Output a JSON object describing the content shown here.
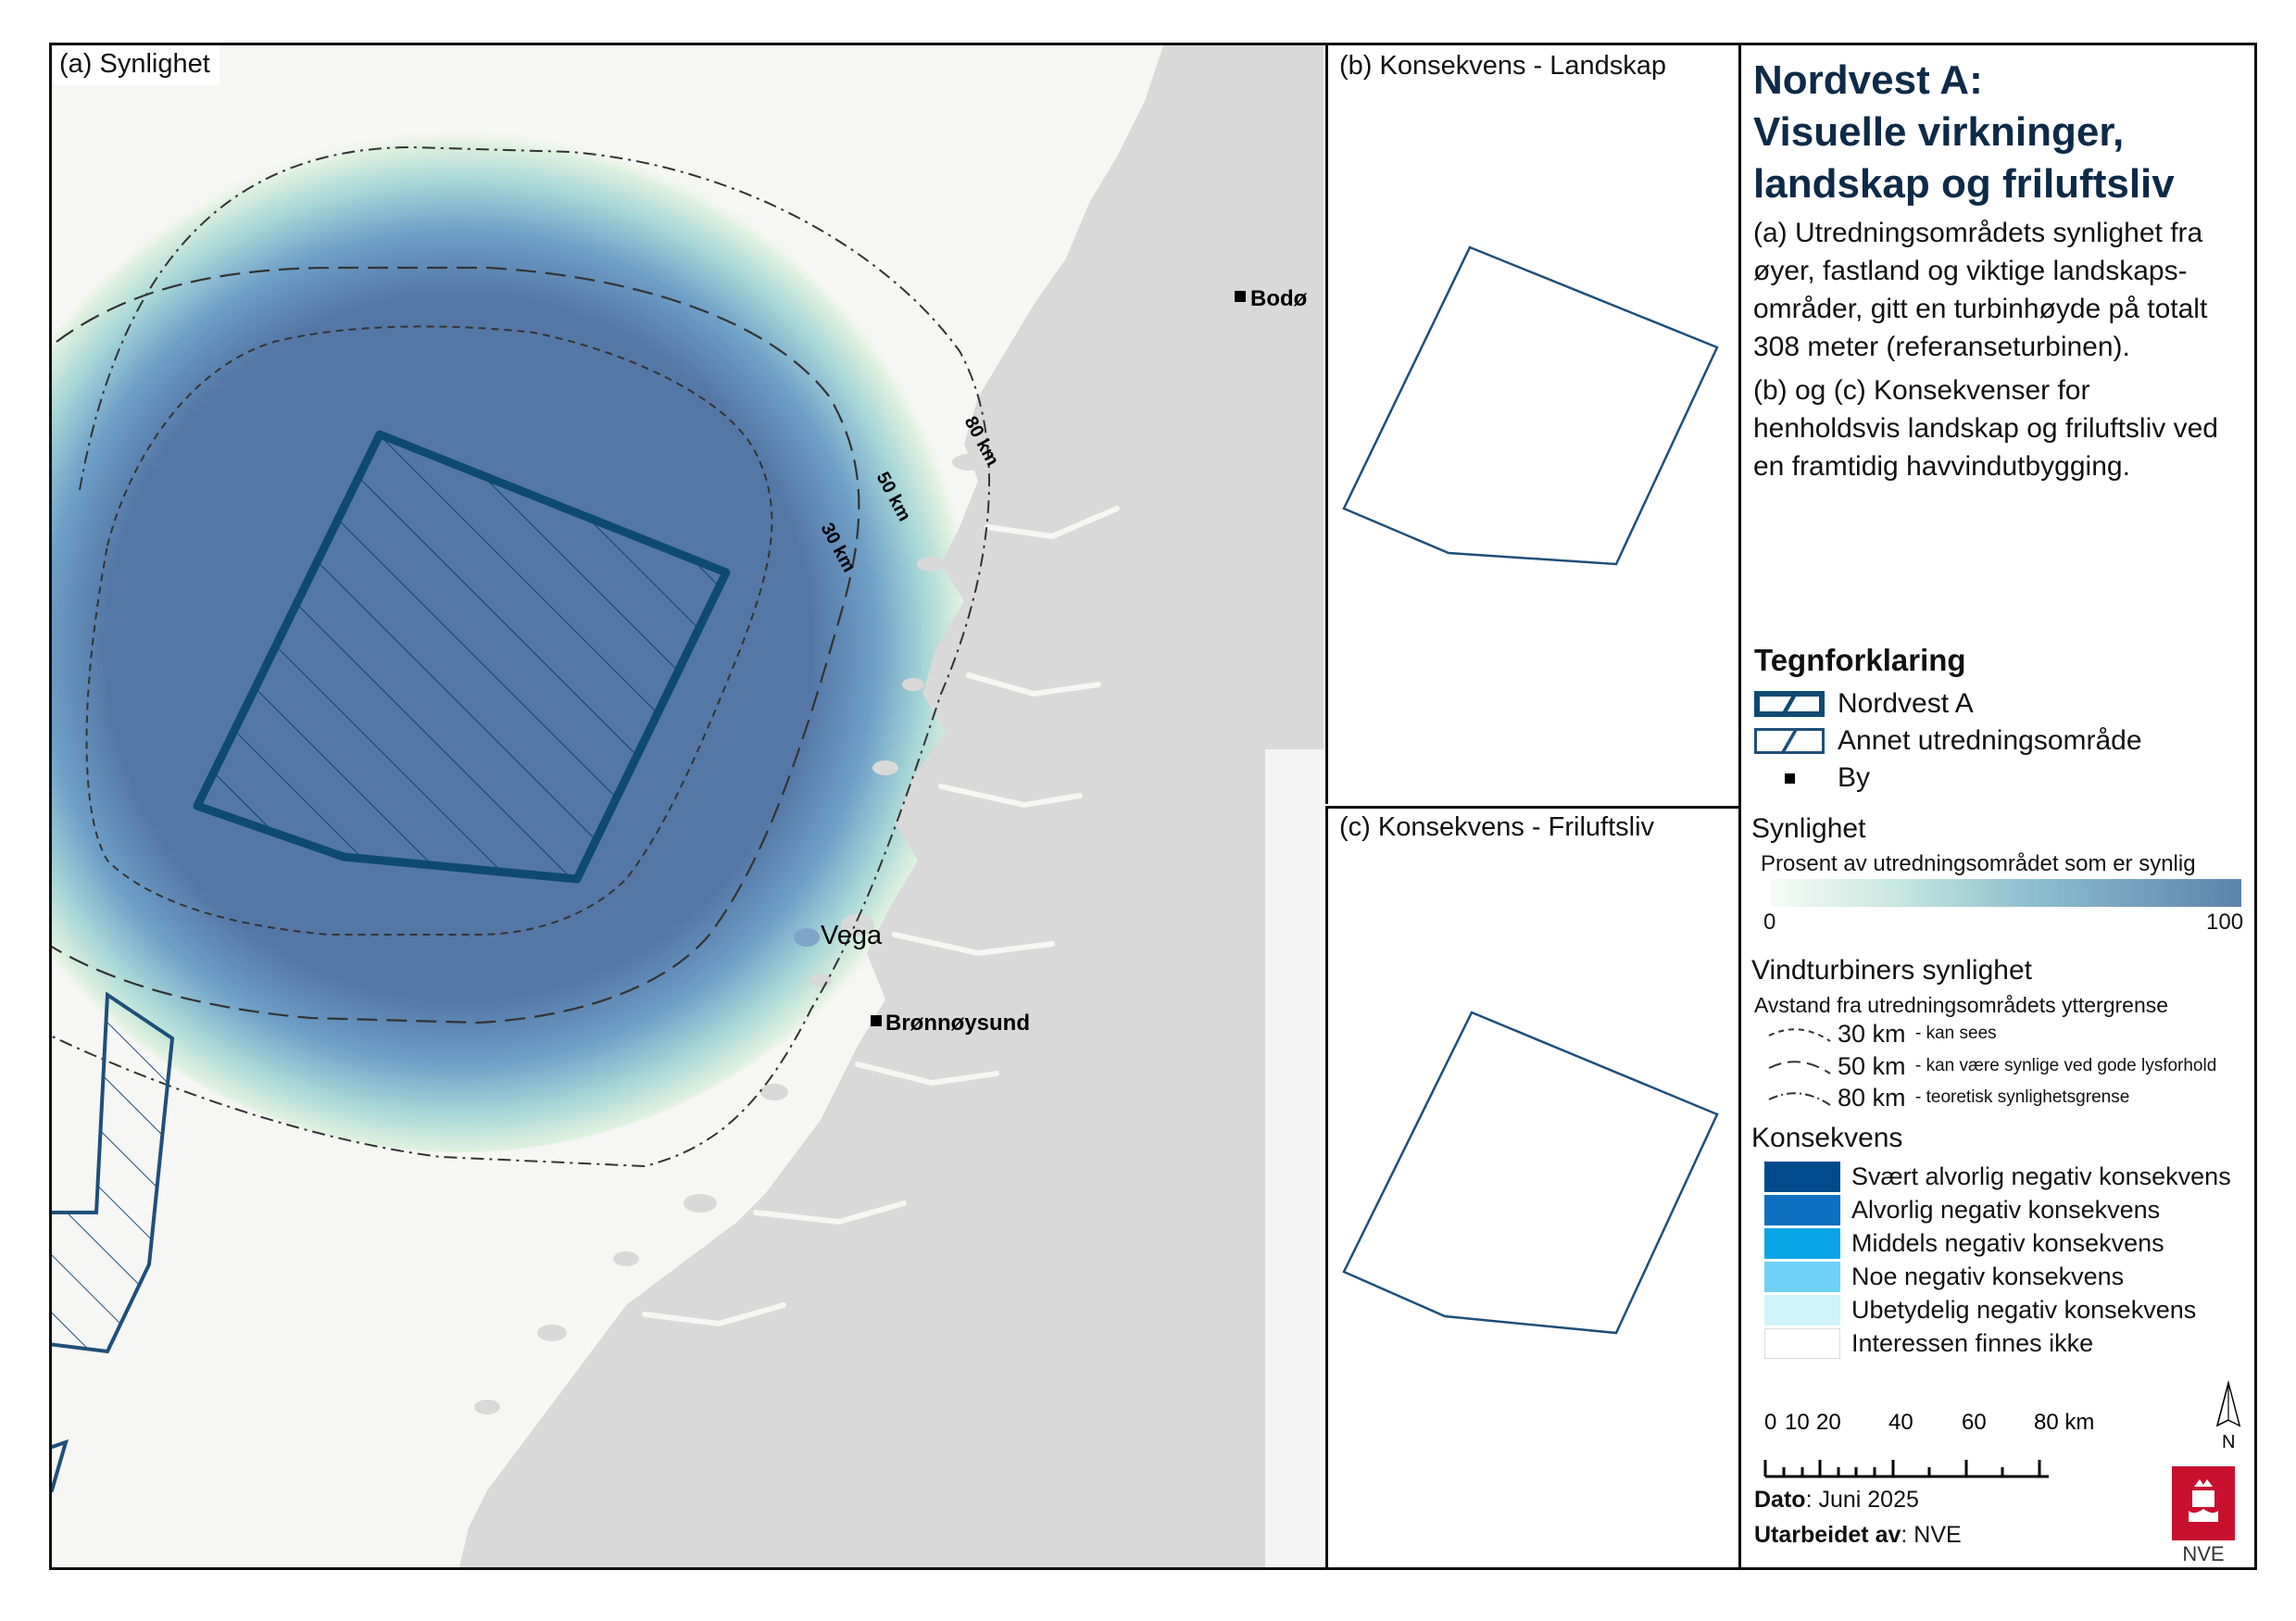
{
  "panels": {
    "a_label": "(a) Synlighet",
    "b_label": "(b) Konsekvens - Landskap",
    "c_label": "(c) Konsekvens - Friluftsliv"
  },
  "map": {
    "cities": [
      "Bodø",
      "Brønnøysund"
    ],
    "island": "Vega",
    "ring_labels": [
      "80 km",
      "50 km",
      "30 km"
    ]
  },
  "title": {
    "line1": "Nordvest A:",
    "line2": "Visuelle virkninger,",
    "line3": "landskap og friluftsliv"
  },
  "description": {
    "a": "(a) Utredningsområdets synlighet fra øyer, fastland og viktige landskaps-områder, gitt en turbinhøyde på totalt 308 meter (referanseturbinen).",
    "b": "(b) og (c) Konsekvenser for henholdsvis landskap og friluftsliv ved en framtidig havvindutbygging."
  },
  "legend": {
    "heading": "Tegnforklaring",
    "items": [
      "Nordvest A",
      "Annet utredningsområde",
      "By"
    ],
    "synlighet": {
      "heading": "Synlighet",
      "subtitle": "Prosent av utredningsområdet som er synlig",
      "min": "0",
      "max": "100",
      "colors": [
        "#f6fbf7",
        "#5c83ab"
      ]
    },
    "turbin": {
      "heading": "Vindturbiners synlighet",
      "subtitle": "Avstand fra utredningsområdets yttergrense",
      "rows": [
        {
          "km": "30 km",
          "note": "- kan sees"
        },
        {
          "km": "50 km",
          "note": "- kan være synlige ved gode lysforhold"
        },
        {
          "km": "80 km",
          "note": "- teoretisk synlighetsgrense"
        }
      ]
    },
    "konsekvens": {
      "heading": "Konsekvens",
      "rows": [
        {
          "label": "Svært alvorlig negativ konsekvens",
          "color": "#004b8c"
        },
        {
          "label": "Alvorlig negativ konsekvens",
          "color": "#0e70c0"
        },
        {
          "label": "Middels negativ konsekvens",
          "color": "#0aa5e6"
        },
        {
          "label": "Noe negativ konsekvens",
          "color": "#6fd1f5"
        },
        {
          "label": "Ubetydelig negativ konsekvens",
          "color": "#d0f4fa"
        },
        {
          "label": "Interessen finnes ikke",
          "color": "#ffffff"
        }
      ]
    }
  },
  "scale": {
    "labels": [
      "0",
      "10",
      "20",
      "40",
      "60",
      "80 km"
    ]
  },
  "north": "N",
  "logo_text": "NVE",
  "footer": {
    "dato_label": "Dato",
    "dato_value": ": Juni 2025",
    "author_label": "Utarbeidet av",
    "author_value": ": NVE"
  },
  "colors": {
    "nordvest_outline": "#0e4a70",
    "annet_outline": "#1e4f7a",
    "land": "#d9d9d9",
    "sea": "#f6f6f4"
  }
}
